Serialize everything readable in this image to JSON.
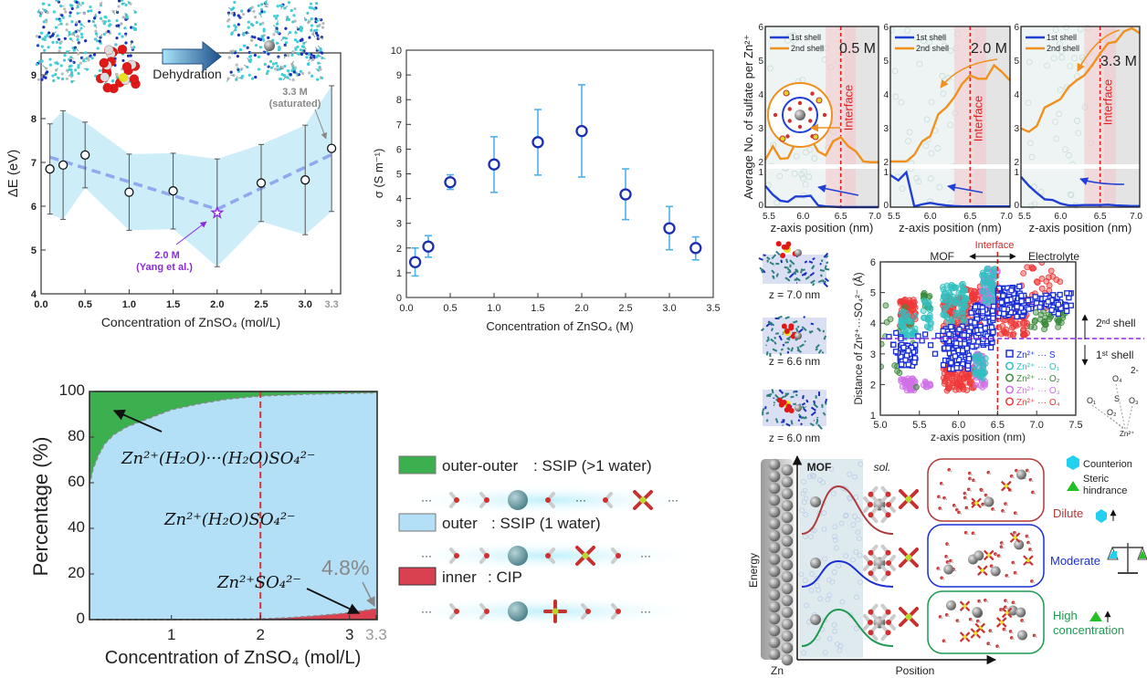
{
  "chart_data": [
    {
      "type": "scatter",
      "xlabel": "Concentration of ZnSO₄ (mol/L)",
      "ylabel": "ΔE (eV)",
      "xlim": [
        0.0,
        3.35
      ],
      "ylim": [
        4,
        9.5
      ],
      "x_ticks": [
        "0.0",
        "0.5",
        "1.0",
        "1.5",
        "2.0",
        "2.5",
        "3.0",
        "3.3"
      ],
      "x_tick_values": [
        0.0,
        0.5,
        1.0,
        1.5,
        2.0,
        2.5,
        3.0,
        3.3
      ],
      "y_ticks": [
        "4",
        "5",
        "6",
        "7",
        "8",
        "9"
      ],
      "y_tick_values": [
        4,
        5,
        6,
        7,
        8,
        9
      ],
      "x": [
        0.1,
        0.25,
        0.5,
        1.0,
        1.5,
        2.0,
        2.5,
        3.0,
        3.3
      ],
      "y": [
        6.85,
        6.94,
        7.17,
        6.32,
        6.35,
        5.85,
        6.53,
        6.6,
        7.32
      ],
      "y_err_low": [
        5.82,
        5.7,
        6.42,
        5.45,
        5.48,
        4.62,
        5.65,
        5.35,
        5.88
      ],
      "y_err_high": [
        7.88,
        8.18,
        7.92,
        7.19,
        7.21,
        7.08,
        7.41,
        7.85,
        8.75
      ],
      "trend": {
        "x": [
          0.1,
          2.0,
          3.3
        ],
        "y": [
          7.12,
          5.93,
          7.18
        ]
      },
      "highlight_point": {
        "x": 2.0,
        "marker": "star",
        "color": "#8a2be2"
      },
      "annotations": {
        "dehydration": "Dehydration",
        "saturated_1": "3.3 M",
        "saturated_2": "(saturated)",
        "ref_1": "2.0 M",
        "ref_2": "(Yang et al.)"
      },
      "colors": {
        "band": "#c8ecf8",
        "trend": "#8fa8f0",
        "errorbar": "#555555",
        "ref": "#8a2be2",
        "saturated": "#888888"
      }
    },
    {
      "type": "scatter",
      "xlabel": "Concentration of ZnSO₄ (M)",
      "ylabel": "σ (S m⁻¹)",
      "xlim": [
        0,
        3.5
      ],
      "ylim": [
        0,
        10
      ],
      "x_ticks": [
        "0.0",
        "0.5",
        "1.0",
        "1.5",
        "2.0",
        "2.5",
        "3.0",
        "3.5"
      ],
      "x_tick_values": [
        0,
        0.5,
        1.0,
        1.5,
        2.0,
        2.5,
        3.0,
        3.5
      ],
      "y_ticks": [
        "0",
        "1",
        "2",
        "3",
        "4",
        "5",
        "6",
        "7",
        "8",
        "9",
        "10"
      ],
      "y_tick_values": [
        0,
        1,
        2,
        3,
        4,
        5,
        6,
        7,
        8,
        9,
        10
      ],
      "x": [
        0.1,
        0.25,
        0.5,
        1.0,
        1.5,
        2.0,
        2.5,
        3.0,
        3.3
      ],
      "y": [
        1.43,
        2.06,
        4.66,
        5.38,
        6.28,
        6.73,
        4.17,
        2.8,
        2.0
      ],
      "y_err_low": [
        0.87,
        1.63,
        4.37,
        4.25,
        4.95,
        4.87,
        3.15,
        1.93,
        1.52
      ],
      "y_err_high": [
        2.0,
        2.5,
        4.96,
        6.5,
        7.6,
        8.6,
        5.2,
        3.68,
        2.45
      ],
      "colors": {
        "marker": "#1a2fb0",
        "errorbar": "#4db0ec"
      }
    },
    {
      "type": "area",
      "xlabel": "Concentration of ZnSO₄ (mol/L)",
      "ylabel": "Percentage (%)",
      "xlim": [
        0.08,
        3.3
      ],
      "ylim": [
        0,
        100
      ],
      "x_ticks": [
        "1",
        "2",
        "3",
        "3.3"
      ],
      "x_tick_values": [
        1,
        2,
        3,
        3.3
      ],
      "y_ticks": [
        "0",
        "20",
        "40",
        "60",
        "80",
        "100"
      ],
      "y_tick_values": [
        0,
        20,
        40,
        60,
        80,
        100
      ],
      "series": [
        {
          "name": "outer-outer",
          "color": "#3cb04f",
          "boundary_x": [
            0.08,
            0.12,
            0.18,
            0.25,
            0.35,
            0.5,
            0.7,
            1.0,
            1.3,
            1.6,
            2.0,
            2.5,
            3.0,
            3.3
          ],
          "boundary_y": [
            59,
            66,
            72,
            77,
            81,
            84.5,
            87.5,
            92,
            94.5,
            96.5,
            98,
            98.8,
            99.2,
            99.4
          ]
        },
        {
          "name": "outer",
          "color": "#b3e0f7"
        },
        {
          "name": "inner",
          "color": "#d94050",
          "boundary_x": [
            0.08,
            1.0,
            1.5,
            2.0,
            2.3,
            2.6,
            2.9,
            3.1,
            3.3
          ],
          "boundary_y": [
            0,
            0,
            0.1,
            0.3,
            0.8,
            1.6,
            2.6,
            3.6,
            4.8
          ]
        }
      ],
      "vline_x": 2,
      "annotations": {
        "outer_outer": "Zn²⁺(H₂O)···(H₂O)SO₄²⁻",
        "outer": "Zn²⁺(H₂O)SO₄²⁻",
        "inner": "Zn²⁺SO₄²⁻",
        "inner_value": "4.8%"
      }
    },
    {
      "type": "line",
      "title": "0.5 M",
      "xlabel": "z-axis position (nm)",
      "ylabel": "Average No. of sulfate per Zn²⁺",
      "xlim": [
        5.5,
        7.0
      ],
      "ylim_lower": [
        0,
        1
      ],
      "ylim_upper": [
        2,
        6
      ],
      "x_ticks": [
        "5.5",
        "6.0",
        "6.5",
        "7.0"
      ],
      "x_tick_values": [
        5.5,
        6.0,
        6.5,
        7.0
      ],
      "y_ticks": [
        "0",
        "1",
        "2",
        "3",
        "4",
        "5",
        "6"
      ],
      "y_tick_values": [
        0,
        1,
        2,
        3,
        4,
        5,
        6
      ],
      "x": [
        5.5,
        5.6,
        5.7,
        5.8,
        5.9,
        6.0,
        6.1,
        6.2,
        6.3,
        6.4,
        6.5,
        6.6,
        6.7,
        6.8,
        6.9,
        7.0
      ],
      "series": [
        {
          "name": "1st shell",
          "color": "#1f3fd6",
          "values": [
            0.6,
            0.35,
            0.18,
            0.15,
            0.3,
            0.3,
            0.32,
            0.05,
            0.02,
            0.01,
            0,
            0,
            0,
            0,
            0,
            0
          ]
        },
        {
          "name": "2nd shell",
          "color": "#f0901e",
          "values": [
            2.05,
            2.45,
            2.08,
            2.1,
            2.55,
            2.75,
            2.68,
            2.3,
            2.18,
            2.6,
            2.72,
            2.45,
            2.3,
            2.0,
            1.98,
            1.98
          ]
        }
      ],
      "interface_x": 6.5,
      "interface_label": "Interface"
    },
    {
      "type": "line",
      "title": "2.0 M",
      "xlabel": "z-axis position (nm)",
      "xlim": [
        5.5,
        7.0
      ],
      "ylim_lower": [
        0,
        1
      ],
      "ylim_upper": [
        2,
        6
      ],
      "x_ticks": [
        "5.5",
        "6.0",
        "6.5",
        "7.0"
      ],
      "x_tick_values": [
        5.5,
        6.0,
        6.5,
        7.0
      ],
      "y_ticks": [
        "0",
        "1",
        "2",
        "3",
        "4",
        "5",
        "6"
      ],
      "y_tick_values": [
        0,
        1,
        2,
        3,
        4,
        5,
        6
      ],
      "x": [
        5.5,
        5.6,
        5.7,
        5.8,
        5.9,
        6.0,
        6.1,
        6.2,
        6.3,
        6.4,
        6.5,
        6.6,
        6.7,
        6.8,
        6.9,
        7.0
      ],
      "series": [
        {
          "name": "1st shell",
          "color": "#1f3fd6",
          "values": [
            0.9,
            0.75,
            0.98,
            0.02,
            0.08,
            0.12,
            0.08,
            0.05,
            0.03,
            0.02,
            0.02,
            0.02,
            0.02,
            0.02,
            0.02,
            0.02
          ]
        },
        {
          "name": "2nd shell",
          "color": "#f0901e",
          "values": [
            2.0,
            2.0,
            2.0,
            2.2,
            2.6,
            2.75,
            3.4,
            3.6,
            3.9,
            4.3,
            4.55,
            4.45,
            4.45,
            4.85,
            4.65,
            4.4
          ]
        }
      ],
      "interface_x": 6.5,
      "interface_label": "Interface"
    },
    {
      "type": "line",
      "title": "3.3 M",
      "xlabel": "z-axis position (nm)",
      "xlim": [
        5.5,
        7.0
      ],
      "ylim_lower": [
        0,
        1
      ],
      "ylim_upper": [
        2,
        6
      ],
      "x_ticks": [
        "5.5",
        "6.0",
        "6.5",
        "7.0"
      ],
      "x_tick_values": [
        5.5,
        6.0,
        6.5,
        7.0
      ],
      "y_ticks": [
        "0",
        "1",
        "2",
        "3",
        "4",
        "5",
        "6"
      ],
      "y_tick_values": [
        0,
        1,
        2,
        3,
        4,
        5,
        6
      ],
      "x": [
        5.5,
        5.6,
        5.7,
        5.8,
        5.9,
        6.0,
        6.1,
        6.2,
        6.3,
        6.4,
        6.5,
        6.6,
        6.7,
        6.8,
        6.9,
        7.0
      ],
      "series": [
        {
          "name": "1st shell",
          "color": "#1f3fd6",
          "values": [
            0.85,
            0.6,
            0.4,
            0.22,
            0.2,
            0.1,
            0.05,
            0.05,
            0.06,
            0.06,
            0.06,
            0.07,
            0.05,
            0.04,
            0.03,
            0.03
          ]
        },
        {
          "name": "2nd shell",
          "color": "#f0901e",
          "values": [
            2.98,
            2.88,
            3.05,
            3.6,
            3.72,
            3.85,
            4.2,
            4.4,
            4.55,
            4.85,
            5.2,
            5.5,
            5.55,
            5.85,
            5.95,
            5.8
          ]
        }
      ],
      "interface_x": 6.5,
      "interface_label": "Interface"
    },
    {
      "type": "scatter",
      "xlabel": "z-axis position (nm)",
      "ylabel": "Distance of Zn²⁺···SO₄²⁻ (Å)",
      "xlim": [
        5.0,
        7.5
      ],
      "ylim": [
        1,
        6
      ],
      "x_ticks": [
        "5.0",
        "5.5",
        "6.0",
        "6.5",
        "7.0",
        "7.5"
      ],
      "x_tick_values": [
        5.0,
        5.5,
        6.0,
        6.5,
        7.0,
        7.5
      ],
      "y_ticks": [
        "1",
        "2",
        "3",
        "4",
        "5",
        "6"
      ],
      "y_tick_values": [
        1,
        2,
        3,
        4,
        5,
        6
      ],
      "series": [
        {
          "name": "Zn²⁺ ··· S",
          "color": "#1a2fd6",
          "marker": "square",
          "clusters": [
            [
              5.25,
              5.45,
              2.6,
              3.3,
              70
            ],
            [
              5.05,
              5.75,
              2.9,
              3.7,
              18
            ],
            [
              5.8,
              6.15,
              2.5,
              3.9,
              120
            ],
            [
              6.15,
              6.45,
              3.2,
              4.6,
              80
            ],
            [
              6.5,
              6.85,
              4.2,
              5.2,
              100
            ],
            [
              6.85,
              7.45,
              4.3,
              5.0,
              50
            ]
          ]
        },
        {
          "name": "Zn²⁺ ··· O₁",
          "color": "#30c0c0",
          "marker": "circle",
          "clusters": [
            [
              5.25,
              5.45,
              3.5,
              4.4,
              40
            ],
            [
              5.8,
              6.1,
              4.0,
              5.3,
              70
            ],
            [
              6.2,
              6.35,
              2.2,
              3.0,
              30
            ],
            [
              5.55,
              5.65,
              3.8,
              4.8,
              20
            ],
            [
              6.3,
              6.5,
              4.6,
              5.8,
              40
            ]
          ]
        },
        {
          "name": "Zn²⁺ ··· O₂",
          "color": "#3a8a3a",
          "marker": "circle",
          "clusters": [
            [
              5.55,
              5.65,
              4.5,
              5.0,
              15
            ],
            [
              6.9,
              7.4,
              3.8,
              4.5,
              30
            ],
            [
              5.0,
              5.5,
              1.9,
              4.6,
              20
            ]
          ]
        },
        {
          "name": "Zn²⁺ ··· O₃",
          "color": "#d070e8",
          "marker": "circle",
          "clusters": [
            [
              5.25,
              5.45,
              1.8,
              2.2,
              40
            ],
            [
              6.2,
              6.35,
              1.9,
              3.0,
              40
            ],
            [
              6.3,
              6.5,
              4.5,
              5.8,
              60
            ],
            [
              5.55,
              5.65,
              1.9,
              2.1,
              10
            ]
          ]
        },
        {
          "name": "Zn²⁺ ··· O₄",
          "color": "#f03838",
          "marker": "circle",
          "clusters": [
            [
              5.25,
              5.45,
              3.9,
              4.8,
              60
            ],
            [
              5.8,
              6.2,
              1.8,
              2.6,
              90
            ],
            [
              5.8,
              6.1,
              3.4,
              4.9,
              80
            ],
            [
              6.05,
              6.3,
              3.6,
              5.2,
              70
            ],
            [
              6.5,
              6.9,
              3.6,
              4.9,
              80
            ],
            [
              6.8,
              7.3,
              4.5,
              6.0,
              30
            ]
          ]
        }
      ],
      "hline_y": 3.5,
      "interface_x": 6.5,
      "annotations": {
        "interface": "Interface",
        "mof": "MOF",
        "electrolyte": "Electrolyte",
        "second_shell": "2ⁿᵈ shell",
        "first_shell": "1ˢᵗ shell"
      }
    }
  ],
  "legend_c": {
    "items": [
      {
        "label": "outer-outer",
        "desc": ": SSIP (>1 water)",
        "color": "#3cb04f"
      },
      {
        "label": "outer",
        "desc": ": SSIP (1 water)",
        "color": "#b3e0f7"
      },
      {
        "label": "inner",
        "desc": ": CIP",
        "color": "#d94050"
      }
    ],
    "ellipsis": "···"
  },
  "snapshots": {
    "z1": "z = 7.0 nm",
    "z2": "z = 6.6 nm",
    "z3": "z = 6.0 nm"
  },
  "sulfate_diagram": {
    "charge": "2-",
    "o1": "O₁",
    "o2": "O₂",
    "o3": "O₃",
    "o4": "O₄",
    "s": "S",
    "zn": "Zn²⁺"
  },
  "mechanism": {
    "energy": "Energy",
    "position": "Position",
    "zn": "Zn",
    "mof": "MOF",
    "sol": "sol.",
    "counterion": "Counterion",
    "steric_1": "Steric",
    "steric_2": "hindrance",
    "dilute": "Dilute",
    "moderate": "Moderate",
    "high_1": "High",
    "high_2": "concentration",
    "colors": {
      "dilute": "#b03a3a",
      "moderate": "#1a2fd6",
      "high": "#1e9a50",
      "counterion": "#22d0f0",
      "steric": "#22c022"
    }
  }
}
